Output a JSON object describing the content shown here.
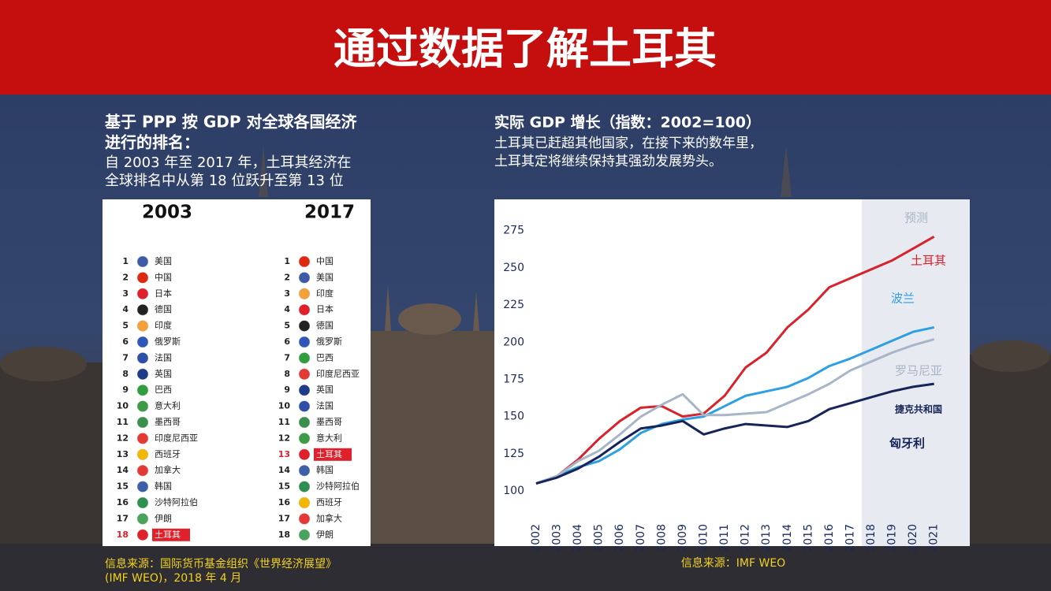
{
  "header": {
    "title": "通过数据了解土耳其"
  },
  "ranking": {
    "heading": [
      "基于 PPP 按 GDP 对全球各国经济",
      "进行的排名："
    ],
    "description": [
      "自 2003 年至 2017 年，土耳其经济在",
      "全球排名中从第 18 位跃升至第 13 位"
    ],
    "columns": [
      {
        "year": 2003,
        "entries": [
          {
            "rank": 1,
            "name": "美国",
            "flag": "#3c5aa6"
          },
          {
            "rank": 2,
            "name": "中国",
            "flag": "#de2910"
          },
          {
            "rank": 3,
            "name": "日本",
            "flag": "#e0202a"
          },
          {
            "rank": 4,
            "name": "德国",
            "flag": "#222222"
          },
          {
            "rank": 5,
            "name": "印度",
            "flag": "#f4a13a"
          },
          {
            "rank": 6,
            "name": "俄罗斯",
            "flag": "#2f57b8"
          },
          {
            "rank": 7,
            "name": "法国",
            "flag": "#2d4fa8"
          },
          {
            "rank": 8,
            "name": "英国",
            "flag": "#1f3c88"
          },
          {
            "rank": 9,
            "name": "巴西",
            "flag": "#2e9e3e"
          },
          {
            "rank": 10,
            "name": "意大利",
            "flag": "#3d9b45"
          },
          {
            "rank": 11,
            "name": "墨西哥",
            "flag": "#3a8f4d"
          },
          {
            "rank": 12,
            "name": "印度尼西亚",
            "flag": "#e53935"
          },
          {
            "rank": 13,
            "name": "西班牙",
            "flag": "#f2b705"
          },
          {
            "rank": 14,
            "name": "加拿大",
            "flag": "#e53935"
          },
          {
            "rank": 15,
            "name": "韩国",
            "flag": "#3d5fa8"
          },
          {
            "rank": 16,
            "name": "沙特阿拉伯",
            "flag": "#2f8f4e"
          },
          {
            "rank": 17,
            "name": "伊朗",
            "flag": "#4aa35a"
          },
          {
            "rank": 18,
            "name": "土耳其",
            "flag": "#e0202a",
            "highlight": true
          }
        ]
      },
      {
        "year": 2017,
        "entries": [
          {
            "rank": 1,
            "name": "中国",
            "flag": "#de2910"
          },
          {
            "rank": 2,
            "name": "美国",
            "flag": "#3c5aa6"
          },
          {
            "rank": 3,
            "name": "印度",
            "flag": "#f4a13a"
          },
          {
            "rank": 4,
            "name": "日本",
            "flag": "#e0202a"
          },
          {
            "rank": 5,
            "name": "德国",
            "flag": "#222222"
          },
          {
            "rank": 6,
            "name": "俄罗斯",
            "flag": "#2f57b8"
          },
          {
            "rank": 7,
            "name": "巴西",
            "flag": "#2e9e3e"
          },
          {
            "rank": 8,
            "name": "印度尼西亚",
            "flag": "#e53935"
          },
          {
            "rank": 9,
            "name": "英国",
            "flag": "#1f3c88"
          },
          {
            "rank": 10,
            "name": "法国",
            "flag": "#2d4fa8"
          },
          {
            "rank": 11,
            "name": "墨西哥",
            "flag": "#3a8f4d"
          },
          {
            "rank": 12,
            "name": "意大利",
            "flag": "#3d9b45"
          },
          {
            "rank": 13,
            "name": "土耳其",
            "flag": "#e0202a",
            "highlight": true
          },
          {
            "rank": 14,
            "name": "韩国",
            "flag": "#3d5fa8"
          },
          {
            "rank": 15,
            "name": "沙特阿拉伯",
            "flag": "#2f8f4e"
          },
          {
            "rank": 16,
            "name": "西班牙",
            "flag": "#f2b705"
          },
          {
            "rank": 17,
            "name": "加拿大",
            "flag": "#e53935"
          },
          {
            "rank": 18,
            "name": "伊朗",
            "flag": "#4aa35a"
          }
        ]
      }
    ],
    "source": [
      "信息来源：国际货币基金组织《世界经济展望》",
      "(IMF WEO)，2018 年 4 月"
    ]
  },
  "chart_data": {
    "type": "line",
    "title": "实际 GDP 增长（指数：2002=100）",
    "subtitle": [
      "土耳其已赶超其他国家，在接下来的数年里，",
      "土耳其定将继续保持其强劲发展势头。"
    ],
    "x": [
      2002,
      2003,
      2004,
      2005,
      2006,
      2007,
      2008,
      2009,
      2010,
      2011,
      2012,
      2013,
      2014,
      2015,
      2016,
      2017,
      2018,
      2019,
      2020,
      2021
    ],
    "xlim": [
      2001.7,
      2021.5
    ],
    "xticks": [
      2002,
      2003,
      2004,
      2005,
      2006,
      2007,
      2008,
      2009,
      2010,
      2011,
      2012,
      2013,
      2014,
      2015,
      2016,
      2017,
      2018,
      2019,
      2020,
      2021
    ],
    "ylim": [
      100,
      295
    ],
    "yticks": [
      100,
      125,
      150,
      175,
      200,
      225,
      250,
      275
    ],
    "forecast": {
      "label": "预测",
      "from": 2018
    },
    "series": [
      {
        "name": "土耳其",
        "color": "#d7232c",
        "values": [
          105,
          110,
          121,
          135,
          147,
          156,
          157,
          150,
          152,
          164,
          183,
          193,
          210,
          222,
          237,
          243,
          249,
          255,
          263,
          271
        ]
      },
      {
        "name": "波兰",
        "color": "#2d9fe3",
        "values": [
          105,
          110,
          116,
          120,
          128,
          139,
          145,
          148,
          150,
          157,
          164,
          167,
          170,
          176,
          184,
          189,
          195,
          201,
          207,
          210
        ]
      },
      {
        "name": "罗马尼亚",
        "color": "#a8b5c8",
        "values": [
          105,
          110,
          120,
          127,
          138,
          150,
          158,
          165,
          151,
          151,
          152,
          153,
          159,
          165,
          172,
          181,
          187,
          193,
          198,
          202
        ]
      },
      {
        "name": "捷克共和国",
        "color": "#17245a",
        "values": [
          105,
          109,
          115,
          123,
          133,
          142,
          144,
          147,
          138,
          142,
          145,
          144,
          143,
          147,
          155,
          159,
          163,
          167,
          170,
          172
        ]
      }
    ],
    "annotations": [
      {
        "text": "匈牙利",
        "color": "#17245a"
      }
    ],
    "source": "信息来源：IMF WEO"
  }
}
